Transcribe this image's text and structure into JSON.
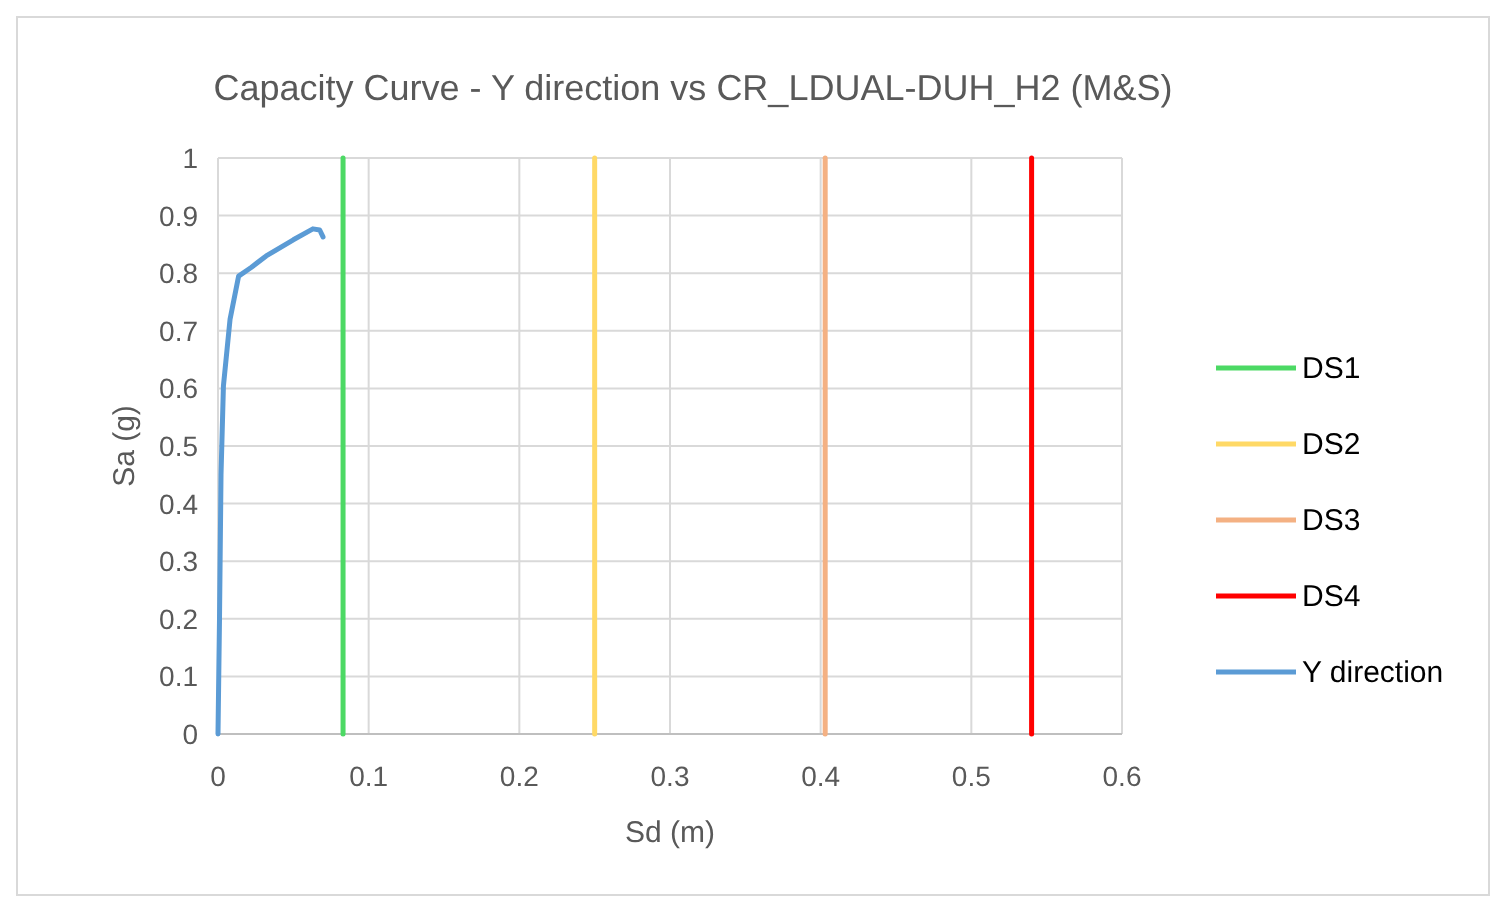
{
  "chart_data": {
    "type": "line",
    "title": "Capacity Curve - Y direction vs CR_LDUAL-DUH_H2 (M&S)",
    "xlabel": "Sd (m)",
    "ylabel": "Sa (g)",
    "xlim": [
      0,
      0.6
    ],
    "xticks": [
      0,
      0.1,
      0.2,
      0.3,
      0.4,
      0.5,
      0.6
    ],
    "ylim": [
      0,
      1
    ],
    "yticks": [
      0,
      0.1,
      0.2,
      0.3,
      0.4,
      0.5,
      0.6,
      0.7,
      0.8,
      0.9,
      1
    ],
    "grid": true,
    "legend": "right",
    "marker": "none",
    "line_style": "solid",
    "series": [
      {
        "name": "DS1",
        "color": "#4cd964",
        "x": [
          0.083,
          0.083
        ],
        "values": [
          0,
          1
        ]
      },
      {
        "name": "DS2",
        "color": "#ffd966",
        "x": [
          0.25,
          0.25
        ],
        "values": [
          0,
          1
        ]
      },
      {
        "name": "DS3",
        "color": "#f4b183",
        "x": [
          0.403,
          0.403
        ],
        "values": [
          0,
          1
        ]
      },
      {
        "name": "DS4",
        "color": "#ff0000",
        "x": [
          0.54,
          0.54
        ],
        "values": [
          0,
          1
        ]
      },
      {
        "name": "Y direction",
        "color": "#5b9bd5",
        "x": [
          0,
          0.001,
          0.002,
          0.0036,
          0.008,
          0.0137,
          0.022,
          0.032,
          0.05,
          0.063,
          0.0675,
          0.0697
        ],
        "values": [
          0,
          0.2,
          0.45,
          0.604,
          0.72,
          0.795,
          0.81,
          0.83,
          0.858,
          0.877,
          0.875,
          0.863
        ]
      }
    ]
  }
}
